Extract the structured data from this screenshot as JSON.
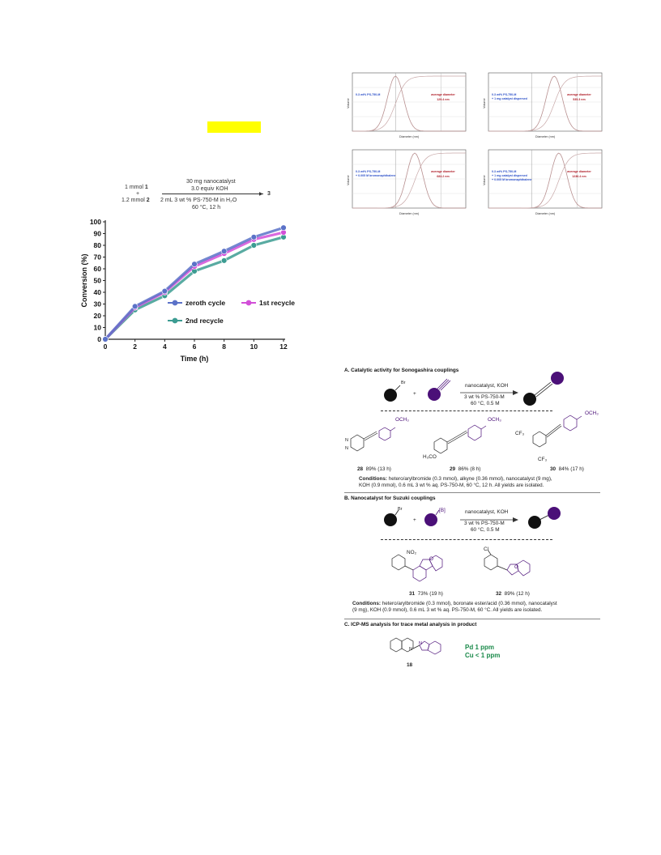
{
  "reaction_top": {
    "left_line1": "1 mmol",
    "left_bold1": "1",
    "plus": "+",
    "left_line2": "1.2 mmol",
    "left_bold2": "2",
    "above1": "30 mg nanocatalyst",
    "above2": "3.0 equiv KOH",
    "below1": "2 mL 3 wt % PS-750-M in H₂O",
    "below2": "60 °C, 12 h",
    "product": "3"
  },
  "chart_data": {
    "type": "line",
    "xlabel": "Time (h)",
    "ylabel": "Conversion (%)",
    "xlim": [
      0,
      12
    ],
    "ylim": [
      0,
      100
    ],
    "x": [
      0,
      2,
      4,
      6,
      8,
      10,
      12
    ],
    "xticks": [
      "0",
      "2",
      "4",
      "6",
      "8",
      "10",
      "12"
    ],
    "yticks": [
      "0",
      "10",
      "20",
      "30",
      "40",
      "50",
      "60",
      "70",
      "80",
      "90",
      "100"
    ],
    "series": [
      {
        "name": "zeroth cycle",
        "color": "#5b72c8",
        "values": [
          0,
          28,
          41,
          64,
          75,
          87,
          95
        ]
      },
      {
        "name": "1st recycle",
        "color": "#d24fd8",
        "values": [
          0,
          27,
          40,
          62,
          73,
          85,
          91
        ]
      },
      {
        "name": "2nd recycle",
        "color": "#3c9c92",
        "values": [
          0,
          25,
          37,
          58,
          67,
          80,
          87
        ]
      }
    ],
    "legend": "inside-lower-right",
    "grid": false
  },
  "dls_panels": [
    {
      "ylabel": "Volume",
      "xlabel": "Diameter (nm)",
      "left_text": "0.3 wt% PS-750-M",
      "right_text_1": "average diameter",
      "right_text_2": "129.4 nm"
    },
    {
      "ylabel": "Volume",
      "xlabel": "Diameter (nm)",
      "left_text": "0.3 wt% PS-750-M + 1 mg catalyst dispersed",
      "right_text_1": "average diameter",
      "right_text_2": "535.3 nm"
    },
    {
      "ylabel": "Volume",
      "xlabel": "Diameter (nm)",
      "left_text": "0.3 wt% PS-750-M + 0.005 M bromonaphthalene",
      "right_text_1": "average diameter",
      "right_text_2": "683.2 nm"
    },
    {
      "ylabel": "Volume",
      "xlabel": "Diameter (nm)",
      "left_text": "0.3 wt% PS-750-M + 1 mg catalyst dispersed + 0.005 M bromonaphthalene",
      "right_text_1": "average diameter",
      "right_text_2": "1236.4 nm"
    }
  ],
  "section_a": {
    "title": "A. Catalytic activity for Sonogashira couplings",
    "br": "Br",
    "plus": "+",
    "above": "nanocatalyst, KOH",
    "below1": "3 wt % PS-750-M",
    "below2": "60 °C, 0.5 M",
    "och3": "OCH₃",
    "h3co": "H₃CO",
    "cf3": "CF₃",
    "compounds": [
      {
        "num": "28",
        "yield": "89% (13 h)"
      },
      {
        "num": "29",
        "yield": "86% (8 h)"
      },
      {
        "num": "30",
        "yield": "84% (17 h)"
      }
    ],
    "cond_label": "Conditions:",
    "cond_text1": "hetero/arylbromide (0.3 mmol), alkyne (0.36 mmol), nanocatalyst (9 mg),",
    "cond_text2": "KOH (0.9 mmol), 0.6 mL 3 wt % aq. PS-750-M, 60 °C, 12 h. All yields are isolated."
  },
  "section_b": {
    "title": "B. Nanocatalyst for Suzuki couplings",
    "br": "Br",
    "boron": "[B]",
    "plus": "+",
    "above": "nanocatalyst, KOH",
    "below1": "3 wt % PS-750-M",
    "below2": "60 °C, 0.5 M",
    "no2": "NO₂",
    "cl": "Cl",
    "o": "O",
    "compounds": [
      {
        "num": "31",
        "yield": "73% (19 h)"
      },
      {
        "num": "32",
        "yield": "89% (12 h)"
      }
    ],
    "cond_label": "Conditions:",
    "cond_text1": "hetero/arylbromide (0.3 mmol), boronate ester/acid (0.36 mmol), nanocatalyst",
    "cond_text2": "(9 mg), KOH (0.9 mmol), 0.6 mL 3 wt % aq. PS-750-M, 60 °C. All yields are isolated."
  },
  "section_c": {
    "title": "C. ICP-MS analysis for trace metal analysis in product",
    "pd": "Pd  1 ppm",
    "cu": "Cu  < 1 ppm",
    "compound": "18",
    "n1": "N",
    "n2": "N"
  },
  "colors": {
    "purple": "#4b1078",
    "black": "#111111",
    "green": "#1a8a4a",
    "highlight": "#ffff00"
  }
}
